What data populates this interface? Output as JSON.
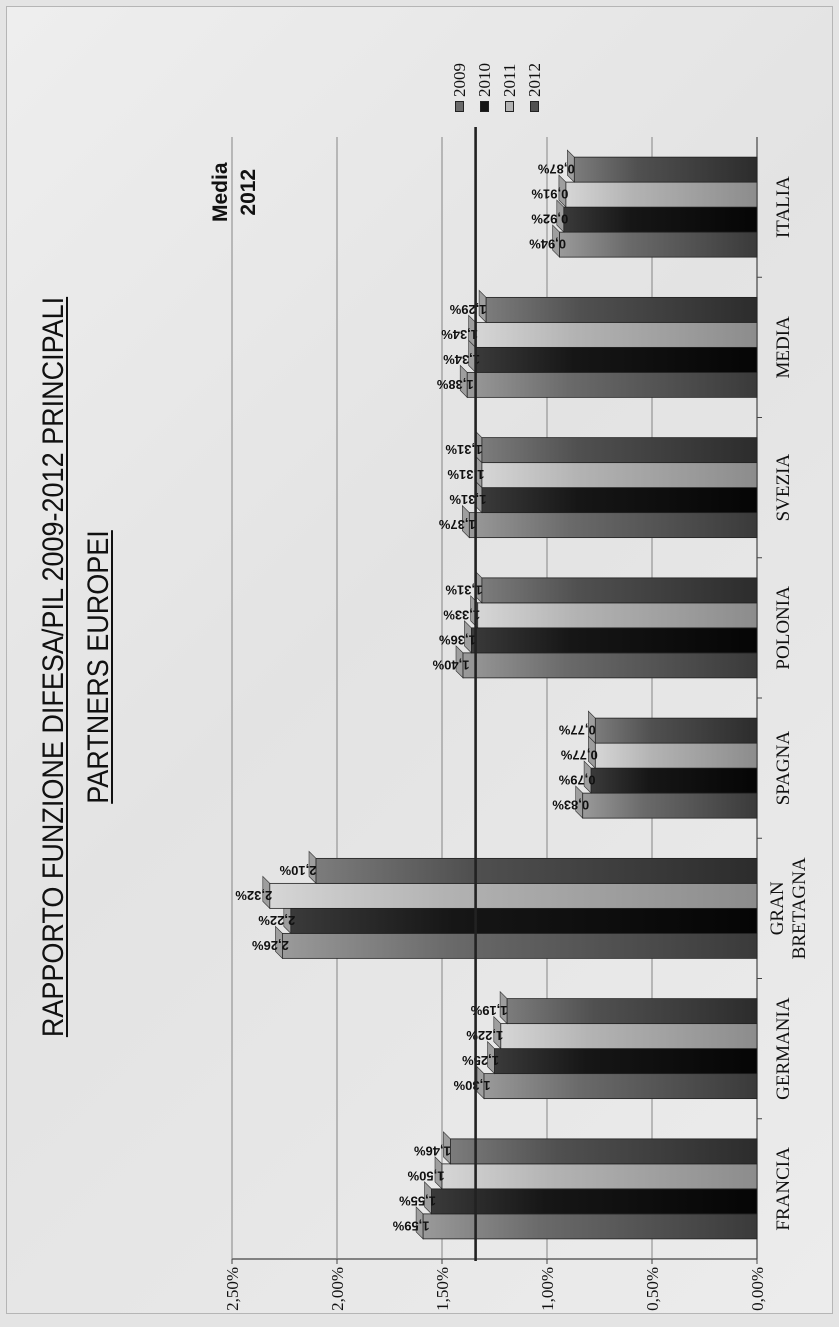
{
  "title_line1": "RAPPORTO FUNZIONE DIFESA/PIL 2009-2012  PRINCIPALI",
  "title_line2": "PARTNERS EUROPEI",
  "media": {
    "line1": "Media",
    "line2": "2012",
    "value": 1.34
  },
  "legend": [
    {
      "name": "2009",
      "color": "#6a6a6a"
    },
    {
      "name": "2010",
      "color": "#161616"
    },
    {
      "name": "2011",
      "color": "#b3b3b3"
    },
    {
      "name": "2012",
      "color": "#505050"
    }
  ],
  "chart_data": {
    "type": "bar",
    "categories": [
      "FRANCIA",
      "GERMANIA",
      "GRAN BRETAGNA",
      "SPAGNA",
      "POLONIA",
      "SVEZIA",
      "MEDIA",
      "ITALIA"
    ],
    "series": [
      {
        "name": "2009",
        "values": [
          1.59,
          1.3,
          2.26,
          0.83,
          1.4,
          1.37,
          1.38,
          0.94
        ]
      },
      {
        "name": "2010",
        "values": [
          1.55,
          1.25,
          2.22,
          0.79,
          1.36,
          1.31,
          1.34,
          0.92
        ]
      },
      {
        "name": "2011",
        "values": [
          1.5,
          1.22,
          2.32,
          0.77,
          1.33,
          1.31,
          1.34,
          0.91
        ]
      },
      {
        "name": "2012",
        "values": [
          1.46,
          1.19,
          2.1,
          0.77,
          1.31,
          1.31,
          1.29,
          0.87
        ]
      }
    ],
    "data_labels": [
      [
        "1,59%",
        "1,55%",
        "1,50%",
        "1,46%"
      ],
      [
        "1,30%",
        "1,25%",
        "1,22%",
        "1,19%"
      ],
      [
        "2,26%",
        "2,22%",
        "2,32%",
        "2,10%"
      ],
      [
        "0,83%",
        "0,79%",
        "0,77%",
        "0,77%"
      ],
      [
        "1,40%",
        "1,36%",
        "1,33%",
        "1,31%"
      ],
      [
        "1,37%",
        "1,31%",
        "1,31%",
        "1,31%"
      ],
      [
        "1,38%",
        "1,34%",
        "1,34%",
        "1,29%"
      ],
      [
        "0,94%",
        "0,92%",
        "0,91%",
        "0,87%"
      ]
    ],
    "yticks": [
      0,
      0.5,
      1.0,
      1.5,
      2.0,
      2.5
    ],
    "ytick_labels": [
      "0,00%",
      "0,50%",
      "1,00%",
      "1,50%",
      "2,00%",
      "2,50%"
    ],
    "ylim": [
      0,
      2.5
    ],
    "grid": true,
    "orientation": "rotated 90° counter-clockwise",
    "legend_position": "top-right"
  }
}
